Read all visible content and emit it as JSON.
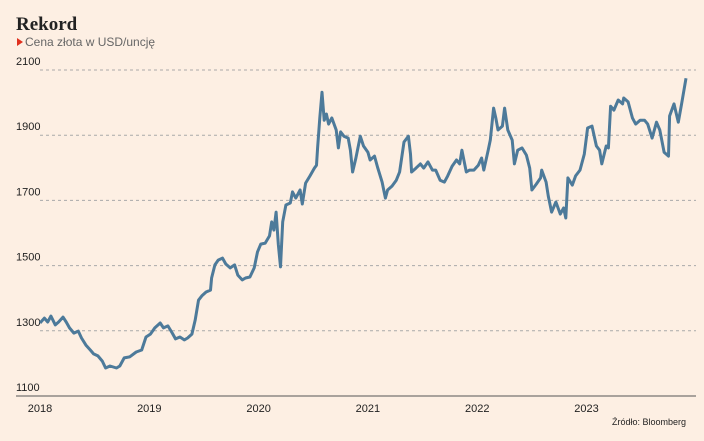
{
  "chart_data": {
    "type": "line",
    "title": "Rekord",
    "subtitle": "Cena złota w USD/uncję",
    "source": "Źródło: Bloomberg",
    "color": "#4d7a9a",
    "grid": true,
    "xlim": [
      2018,
      2023.91
    ],
    "xticks": [
      2018,
      2019,
      2020,
      2021,
      2022,
      2023
    ],
    "ylim": [
      1100,
      2100
    ],
    "yticks": [
      1100,
      1300,
      1500,
      1700,
      1900,
      2100
    ],
    "x": [
      2018.0,
      2018.04,
      2018.07,
      2018.1,
      2018.14,
      2018.17,
      2018.21,
      2018.24,
      2018.27,
      2018.31,
      2018.35,
      2018.38,
      2018.42,
      2018.46,
      2018.49,
      2018.53,
      2018.57,
      2018.6,
      2018.64,
      2018.7,
      2018.73,
      2018.77,
      2018.82,
      2018.88,
      2018.93,
      2018.97,
      2019.01,
      2019.05,
      2019.1,
      2019.13,
      2019.17,
      2019.21,
      2019.24,
      2019.28,
      2019.32,
      2019.35,
      2019.39,
      2019.42,
      2019.45,
      2019.48,
      2019.52,
      2019.56,
      2019.57,
      2019.6,
      2019.63,
      2019.67,
      2019.7,
      2019.74,
      2019.78,
      2019.81,
      2019.85,
      2019.88,
      2019.92,
      2019.96,
      2019.99,
      2020.02,
      2020.06,
      2020.1,
      2020.12,
      2020.14,
      2020.16,
      2020.18,
      2020.2,
      2020.22,
      2020.25,
      2020.29,
      2020.31,
      2020.34,
      2020.38,
      2020.4,
      2020.43,
      2020.47,
      2020.51,
      2020.53,
      2020.54,
      2020.56,
      2020.58,
      2020.6,
      2020.62,
      2020.64,
      2020.67,
      2020.71,
      2020.73,
      2020.75,
      2020.78,
      2020.82,
      2020.84,
      2020.86,
      2020.89,
      2020.93,
      2020.96,
      2021.0,
      2021.02,
      2021.06,
      2021.09,
      2021.13,
      2021.16,
      2021.18,
      2021.22,
      2021.26,
      2021.29,
      2021.33,
      2021.37,
      2021.39,
      2021.4,
      2021.44,
      2021.48,
      2021.51,
      2021.55,
      2021.59,
      2021.62,
      2021.66,
      2021.7,
      2021.73,
      2021.77,
      2021.81,
      2021.84,
      2021.86,
      2021.9,
      2021.93,
      2021.97,
      2022.01,
      2022.04,
      2022.06,
      2022.1,
      2022.12,
      2022.15,
      2022.17,
      2022.19,
      2022.23,
      2022.25,
      2022.28,
      2022.32,
      2022.34,
      2022.37,
      2022.41,
      2022.45,
      2022.48,
      2022.5,
      2022.54,
      2022.58,
      2022.59,
      2022.63,
      2022.65,
      2022.68,
      2022.72,
      2022.76,
      2022.79,
      2022.81,
      2022.83,
      2022.87,
      2022.9,
      2022.94,
      2022.98,
      2023.01,
      2023.05,
      2023.09,
      2023.12,
      2023.14,
      2023.18,
      2023.2,
      2023.22,
      2023.25,
      2023.29,
      2023.33,
      2023.34,
      2023.38,
      2023.42,
      2023.45,
      2023.49,
      2023.53,
      2023.56,
      2023.6,
      2023.64,
      2023.67,
      2023.71,
      2023.75,
      2023.76,
      2023.8,
      2023.84,
      2023.87,
      2023.91
    ],
    "values": [
      1324,
      1339,
      1327,
      1345,
      1318,
      1327,
      1342,
      1327,
      1309,
      1293,
      1299,
      1278,
      1256,
      1241,
      1229,
      1223,
      1207,
      1186,
      1192,
      1186,
      1192,
      1217,
      1220,
      1235,
      1241,
      1281,
      1290,
      1309,
      1324,
      1309,
      1315,
      1293,
      1275,
      1281,
      1272,
      1278,
      1290,
      1333,
      1394,
      1407,
      1419,
      1425,
      1462,
      1502,
      1517,
      1523,
      1505,
      1493,
      1502,
      1471,
      1456,
      1462,
      1465,
      1493,
      1542,
      1566,
      1569,
      1591,
      1634,
      1609,
      1664,
      1566,
      1496,
      1634,
      1686,
      1692,
      1726,
      1707,
      1732,
      1689,
      1753,
      1775,
      1799,
      1808,
      1861,
      1953,
      2032,
      1946,
      1965,
      1934,
      1953,
      1916,
      1861,
      1910,
      1897,
      1891,
      1854,
      1787,
      1830,
      1897,
      1867,
      1848,
      1824,
      1836,
      1799,
      1756,
      1707,
      1732,
      1744,
      1762,
      1787,
      1879,
      1897,
      1842,
      1787,
      1799,
      1812,
      1799,
      1818,
      1793,
      1793,
      1762,
      1756,
      1775,
      1805,
      1824,
      1812,
      1854,
      1787,
      1793,
      1793,
      1808,
      1830,
      1793,
      1854,
      1885,
      1983,
      1953,
      1916,
      1928,
      1983,
      1916,
      1885,
      1812,
      1854,
      1861,
      1839,
      1799,
      1732,
      1750,
      1769,
      1793,
      1756,
      1713,
      1664,
      1695,
      1658,
      1677,
      1646,
      1769,
      1747,
      1775,
      1793,
      1842,
      1922,
      1928,
      1867,
      1854,
      1812,
      1867,
      1861,
      1989,
      1977,
      2008,
      1996,
      2014,
      2002,
      1953,
      1934,
      1946,
      1946,
      1934,
      1891,
      1940,
      1916,
      1848,
      1836,
      1959,
      1996,
      1940,
      1996,
      2075
    ]
  }
}
